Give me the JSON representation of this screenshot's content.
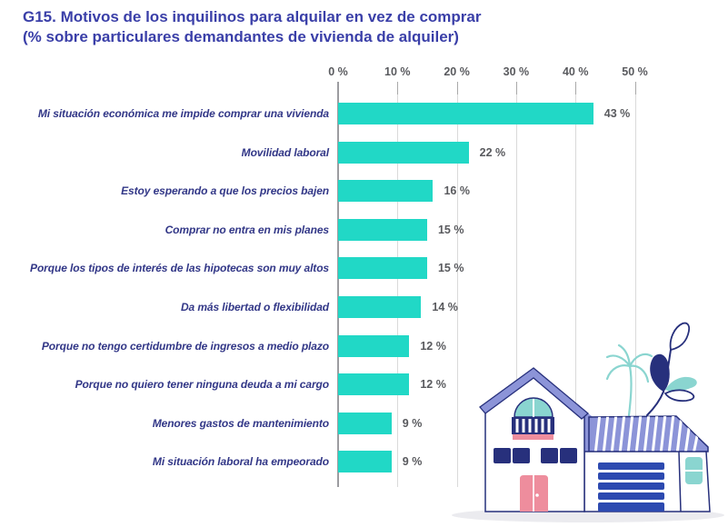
{
  "title": {
    "line1": "G15. Motivos de los inquilinos para alquilar en vez de comprar",
    "line2": "(% sobre particulares demandantes de vivienda de alquiler)"
  },
  "chart_data": {
    "type": "bar",
    "orientation": "horizontal",
    "title": "G15. Motivos de los inquilinos para alquilar en vez de comprar (% sobre particulares demandantes de vivienda de alquiler)",
    "categories": [
      "Mi situación económica me impide comprar una vivienda",
      "Movilidad laboral",
      "Estoy esperando a que los precios bajen",
      "Comprar no entra en mis planes",
      "Porque los tipos de interés de las hipotecas son muy altos",
      "Da más libertad o flexibilidad",
      "Porque no tengo certidumbre de ingresos a medio plazo",
      "Porque no quiero tener ninguna deuda a mi cargo",
      "Menores gastos de mantenimiento",
      "Mi situación laboral ha empeorado"
    ],
    "values": [
      43,
      22,
      16,
      15,
      15,
      14,
      12,
      12,
      9,
      9
    ],
    "value_labels": [
      "43 %",
      "22 %",
      "16 %",
      "15 %",
      "15 %",
      "14 %",
      "12 %",
      "12 %",
      "9 %",
      "9 %"
    ],
    "x_ticks": [
      "0 %",
      "10 %",
      "20 %",
      "30 %",
      "40 %",
      "50 %"
    ],
    "x_tick_values": [
      0,
      10,
      20,
      30,
      40,
      50
    ],
    "xlim": [
      0,
      50
    ],
    "xlabel": "",
    "ylabel": "",
    "grid": true,
    "legend": false
  },
  "colors": {
    "title": "#3a3fa8",
    "category_label": "#323787",
    "bar": "#21d8c6",
    "value_label": "#595a5e",
    "axis_text": "#595a5e",
    "axis_line": "#9c9ca0",
    "tick_mark": "#a9a9a9",
    "gridline": "#dadada"
  },
  "illustration": {
    "name": "house-with-garage-palm-and-plant",
    "colors": {
      "navy": "#27307c",
      "periwinkle": "#8c94d8",
      "teal": "#8ad5d0",
      "pink": "#ee8d9d",
      "royal_blue": "#2d4ab0",
      "shadow": "#ebebef"
    }
  }
}
